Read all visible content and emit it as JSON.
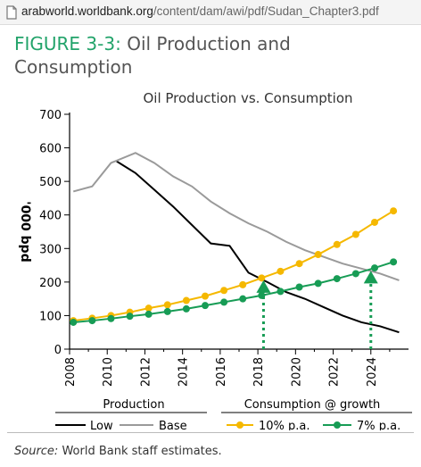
{
  "browser": {
    "url_host": "arabworld.worldbank.org",
    "url_path": "/content/dam/awi/pdf/Sudan_Chapter3.pdf"
  },
  "figure": {
    "number": "FIGURE 3-3:",
    "title_line1": "Oil Production and",
    "title_line2": "Consumption",
    "source_label": "Source:",
    "source_text": "World Bank staff estimates."
  },
  "chart_data": {
    "type": "line",
    "title": "Oil Production vs. Consumption",
    "ylabel": "'000 bpd",
    "xlabel": "",
    "ylim": [
      0,
      700
    ],
    "xlim": [
      2008,
      2026
    ],
    "yticks": [
      0,
      100,
      200,
      300,
      400,
      500,
      600,
      700
    ],
    "xticks": [
      2008,
      2010,
      2012,
      2014,
      2016,
      2018,
      2020,
      2022,
      2024
    ],
    "grid": false,
    "legend_groups": [
      {
        "title": "Production",
        "entries": [
          "Low",
          "Base"
        ]
      },
      {
        "title": "Consumption @ growth",
        "entries": [
          "10% p.a.",
          "7% p.a."
        ]
      }
    ],
    "series": [
      {
        "name": "Low",
        "color": "#000000",
        "marker": "none",
        "points": [
          [
            2010.5,
            560
          ],
          [
            2011.5,
            525
          ],
          [
            2012.5,
            475
          ],
          [
            2013.5,
            425
          ],
          [
            2014.5,
            370
          ],
          [
            2015.5,
            315
          ],
          [
            2016.5,
            308
          ],
          [
            2017.5,
            228
          ],
          [
            2018.5,
            200
          ],
          [
            2019.5,
            170
          ],
          [
            2020.5,
            150
          ],
          [
            2021.5,
            125
          ],
          [
            2022.5,
            100
          ],
          [
            2023.5,
            80
          ],
          [
            2024.5,
            68
          ],
          [
            2025.5,
            50
          ]
        ]
      },
      {
        "name": "Base",
        "color": "#9a9a9a",
        "marker": "none",
        "points": [
          [
            2008.2,
            470
          ],
          [
            2009.2,
            485
          ],
          [
            2010.2,
            555
          ],
          [
            2011.5,
            585
          ],
          [
            2012.5,
            555
          ],
          [
            2013.5,
            515
          ],
          [
            2014.5,
            485
          ],
          [
            2015.5,
            440
          ],
          [
            2016.5,
            405
          ],
          [
            2017.5,
            375
          ],
          [
            2018.5,
            350
          ],
          [
            2019.5,
            320
          ],
          [
            2020.5,
            295
          ],
          [
            2021.5,
            275
          ],
          [
            2022.5,
            255
          ],
          [
            2023.5,
            240
          ],
          [
            2024.5,
            225
          ],
          [
            2025.5,
            205
          ]
        ]
      },
      {
        "name": "10% p.a.",
        "color": "#f5b800",
        "marker": "circle",
        "points": [
          [
            2008.2,
            85
          ],
          [
            2009.2,
            92
          ],
          [
            2010.2,
            100
          ],
          [
            2011.2,
            110
          ],
          [
            2012.2,
            122
          ],
          [
            2013.2,
            132
          ],
          [
            2014.2,
            145
          ],
          [
            2015.2,
            158
          ],
          [
            2016.2,
            175
          ],
          [
            2017.2,
            192
          ],
          [
            2018.2,
            212
          ],
          [
            2019.2,
            232
          ],
          [
            2020.2,
            255
          ],
          [
            2021.2,
            282
          ],
          [
            2022.2,
            312
          ],
          [
            2023.2,
            342
          ],
          [
            2024.2,
            378
          ],
          [
            2025.2,
            412
          ]
        ]
      },
      {
        "name": "7% p.a.",
        "color": "#179c55",
        "marker": "circle",
        "points": [
          [
            2008.2,
            80
          ],
          [
            2009.2,
            85
          ],
          [
            2010.2,
            91
          ],
          [
            2011.2,
            98
          ],
          [
            2012.2,
            104
          ],
          [
            2013.2,
            112
          ],
          [
            2014.2,
            120
          ],
          [
            2015.2,
            130
          ],
          [
            2016.2,
            140
          ],
          [
            2017.2,
            150
          ],
          [
            2018.2,
            160
          ],
          [
            2019.2,
            172
          ],
          [
            2020.2,
            185
          ],
          [
            2021.2,
            196
          ],
          [
            2022.2,
            210
          ],
          [
            2023.2,
            225
          ],
          [
            2024.2,
            242
          ],
          [
            2025.2,
            260
          ]
        ]
      }
    ],
    "annotations": [
      {
        "type": "dotted-arrow",
        "color": "#179c55",
        "x": 2018.3,
        "y_from": 0,
        "y_to": 200
      },
      {
        "type": "dotted-arrow",
        "color": "#179c55",
        "x": 2024.0,
        "y_from": 0,
        "y_to": 228
      }
    ]
  }
}
